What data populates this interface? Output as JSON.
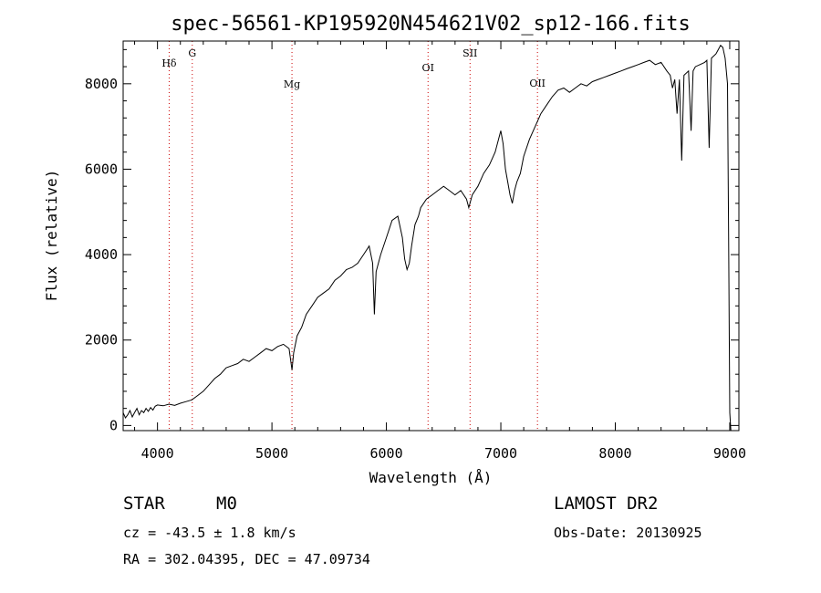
{
  "chart_data": {
    "type": "line",
    "title": "spec-56561-KP195920N454621V02_sp12-166.fits",
    "xlabel": "Wavelength (Å)",
    "ylabel": "Flux (relative)",
    "xlim": [
      3700,
      9080
    ],
    "ylim": [
      -120,
      9000
    ],
    "x_ticks": [
      4000,
      5000,
      6000,
      7000,
      8000,
      9000
    ],
    "y_ticks": [
      0,
      2000,
      4000,
      6000,
      8000
    ],
    "x_tick_labels": [
      "4000",
      "5000",
      "6000",
      "7000",
      "8000",
      "9000"
    ],
    "y_tick_labels": [
      "0",
      "2000",
      "4000",
      "6000",
      "8000"
    ],
    "grid": false,
    "spectral_lines": [
      {
        "name": "Hδ",
        "x": 4102
      },
      {
        "name": "G",
        "x": 4304
      },
      {
        "name": "Mg",
        "x": 5175
      },
      {
        "name": "OI",
        "x": 6364
      },
      {
        "name": "SII",
        "x": 6731
      },
      {
        "name": "OII",
        "x": 7320
      }
    ],
    "series": [
      {
        "x": [
          3700,
          3720,
          3740,
          3760,
          3780,
          3800,
          3820,
          3840,
          3860,
          3880,
          3900,
          3920,
          3940,
          3960,
          3980,
          4000,
          4050,
          4100,
          4150,
          4200,
          4250,
          4300,
          4350,
          4400,
          4450,
          4500,
          4550,
          4600,
          4650,
          4700,
          4750,
          4800,
          4850,
          4900,
          4950,
          5000,
          5050,
          5100,
          5150,
          5175,
          5190,
          5220,
          5260,
          5300,
          5350,
          5400,
          5450,
          5500,
          5550,
          5600,
          5650,
          5700,
          5750,
          5800,
          5850,
          5880,
          5895,
          5910,
          5950,
          6000,
          6050,
          6100,
          6140,
          6160,
          6180,
          6200,
          6220,
          6250,
          6280,
          6300,
          6350,
          6400,
          6450,
          6500,
          6550,
          6600,
          6650,
          6700,
          6720,
          6750,
          6800,
          6850,
          6900,
          6950,
          7000,
          7020,
          7040,
          7060,
          7080,
          7100,
          7120,
          7140,
          7170,
          7200,
          7250,
          7300,
          7350,
          7400,
          7450,
          7500,
          7550,
          7600,
          7650,
          7700,
          7750,
          7800,
          7850,
          7900,
          7950,
          8000,
          8050,
          8100,
          8150,
          8200,
          8250,
          8300,
          8350,
          8400,
          8450,
          8480,
          8500,
          8520,
          8540,
          8560,
          8580,
          8600,
          8640,
          8662,
          8680,
          8700,
          8740,
          8780,
          8800,
          8820,
          8840,
          8860,
          8880,
          8900,
          8920,
          8940,
          8960,
          8980,
          8990,
          9000,
          9010
        ],
        "y": [
          300,
          180,
          250,
          350,
          200,
          300,
          400,
          250,
          350,
          300,
          400,
          330,
          420,
          360,
          450,
          480,
          460,
          500,
          470,
          520,
          560,
          600,
          700,
          800,
          950,
          1100,
          1200,
          1350,
          1400,
          1450,
          1550,
          1500,
          1600,
          1700,
          1800,
          1750,
          1850,
          1900,
          1800,
          1300,
          1700,
          2100,
          2300,
          2600,
          2800,
          3000,
          3100,
          3200,
          3400,
          3500,
          3650,
          3700,
          3800,
          4000,
          4200,
          3800,
          2600,
          3600,
          4000,
          4400,
          4800,
          4900,
          4400,
          3900,
          3650,
          3800,
          4200,
          4700,
          4900,
          5100,
          5300,
          5400,
          5500,
          5600,
          5500,
          5400,
          5500,
          5300,
          5100,
          5400,
          5600,
          5900,
          6100,
          6400,
          6900,
          6600,
          6000,
          5700,
          5400,
          5200,
          5500,
          5700,
          5900,
          6300,
          6700,
          7000,
          7300,
          7500,
          7700,
          7850,
          7900,
          7800,
          7900,
          8000,
          7950,
          8050,
          8100,
          8150,
          8200,
          8250,
          8300,
          8350,
          8400,
          8450,
          8500,
          8550,
          8450,
          8500,
          8300,
          8200,
          7900,
          8100,
          7300,
          8100,
          6200,
          8200,
          8300,
          6900,
          8300,
          8400,
          8450,
          8500,
          8550,
          6500,
          8600,
          8650,
          8700,
          8800,
          8900,
          8850,
          8600,
          8000,
          4500,
          300,
          -200
        ]
      }
    ]
  },
  "info": {
    "class_label": "STAR",
    "subclass": "M0",
    "redshift_text": "cz = -43.5 ± 1.8 km/s",
    "coords_text": "RA = 302.04395, DEC =  47.09734",
    "survey": "LAMOST DR2",
    "obs_date": "Obs-Date: 20130925"
  }
}
